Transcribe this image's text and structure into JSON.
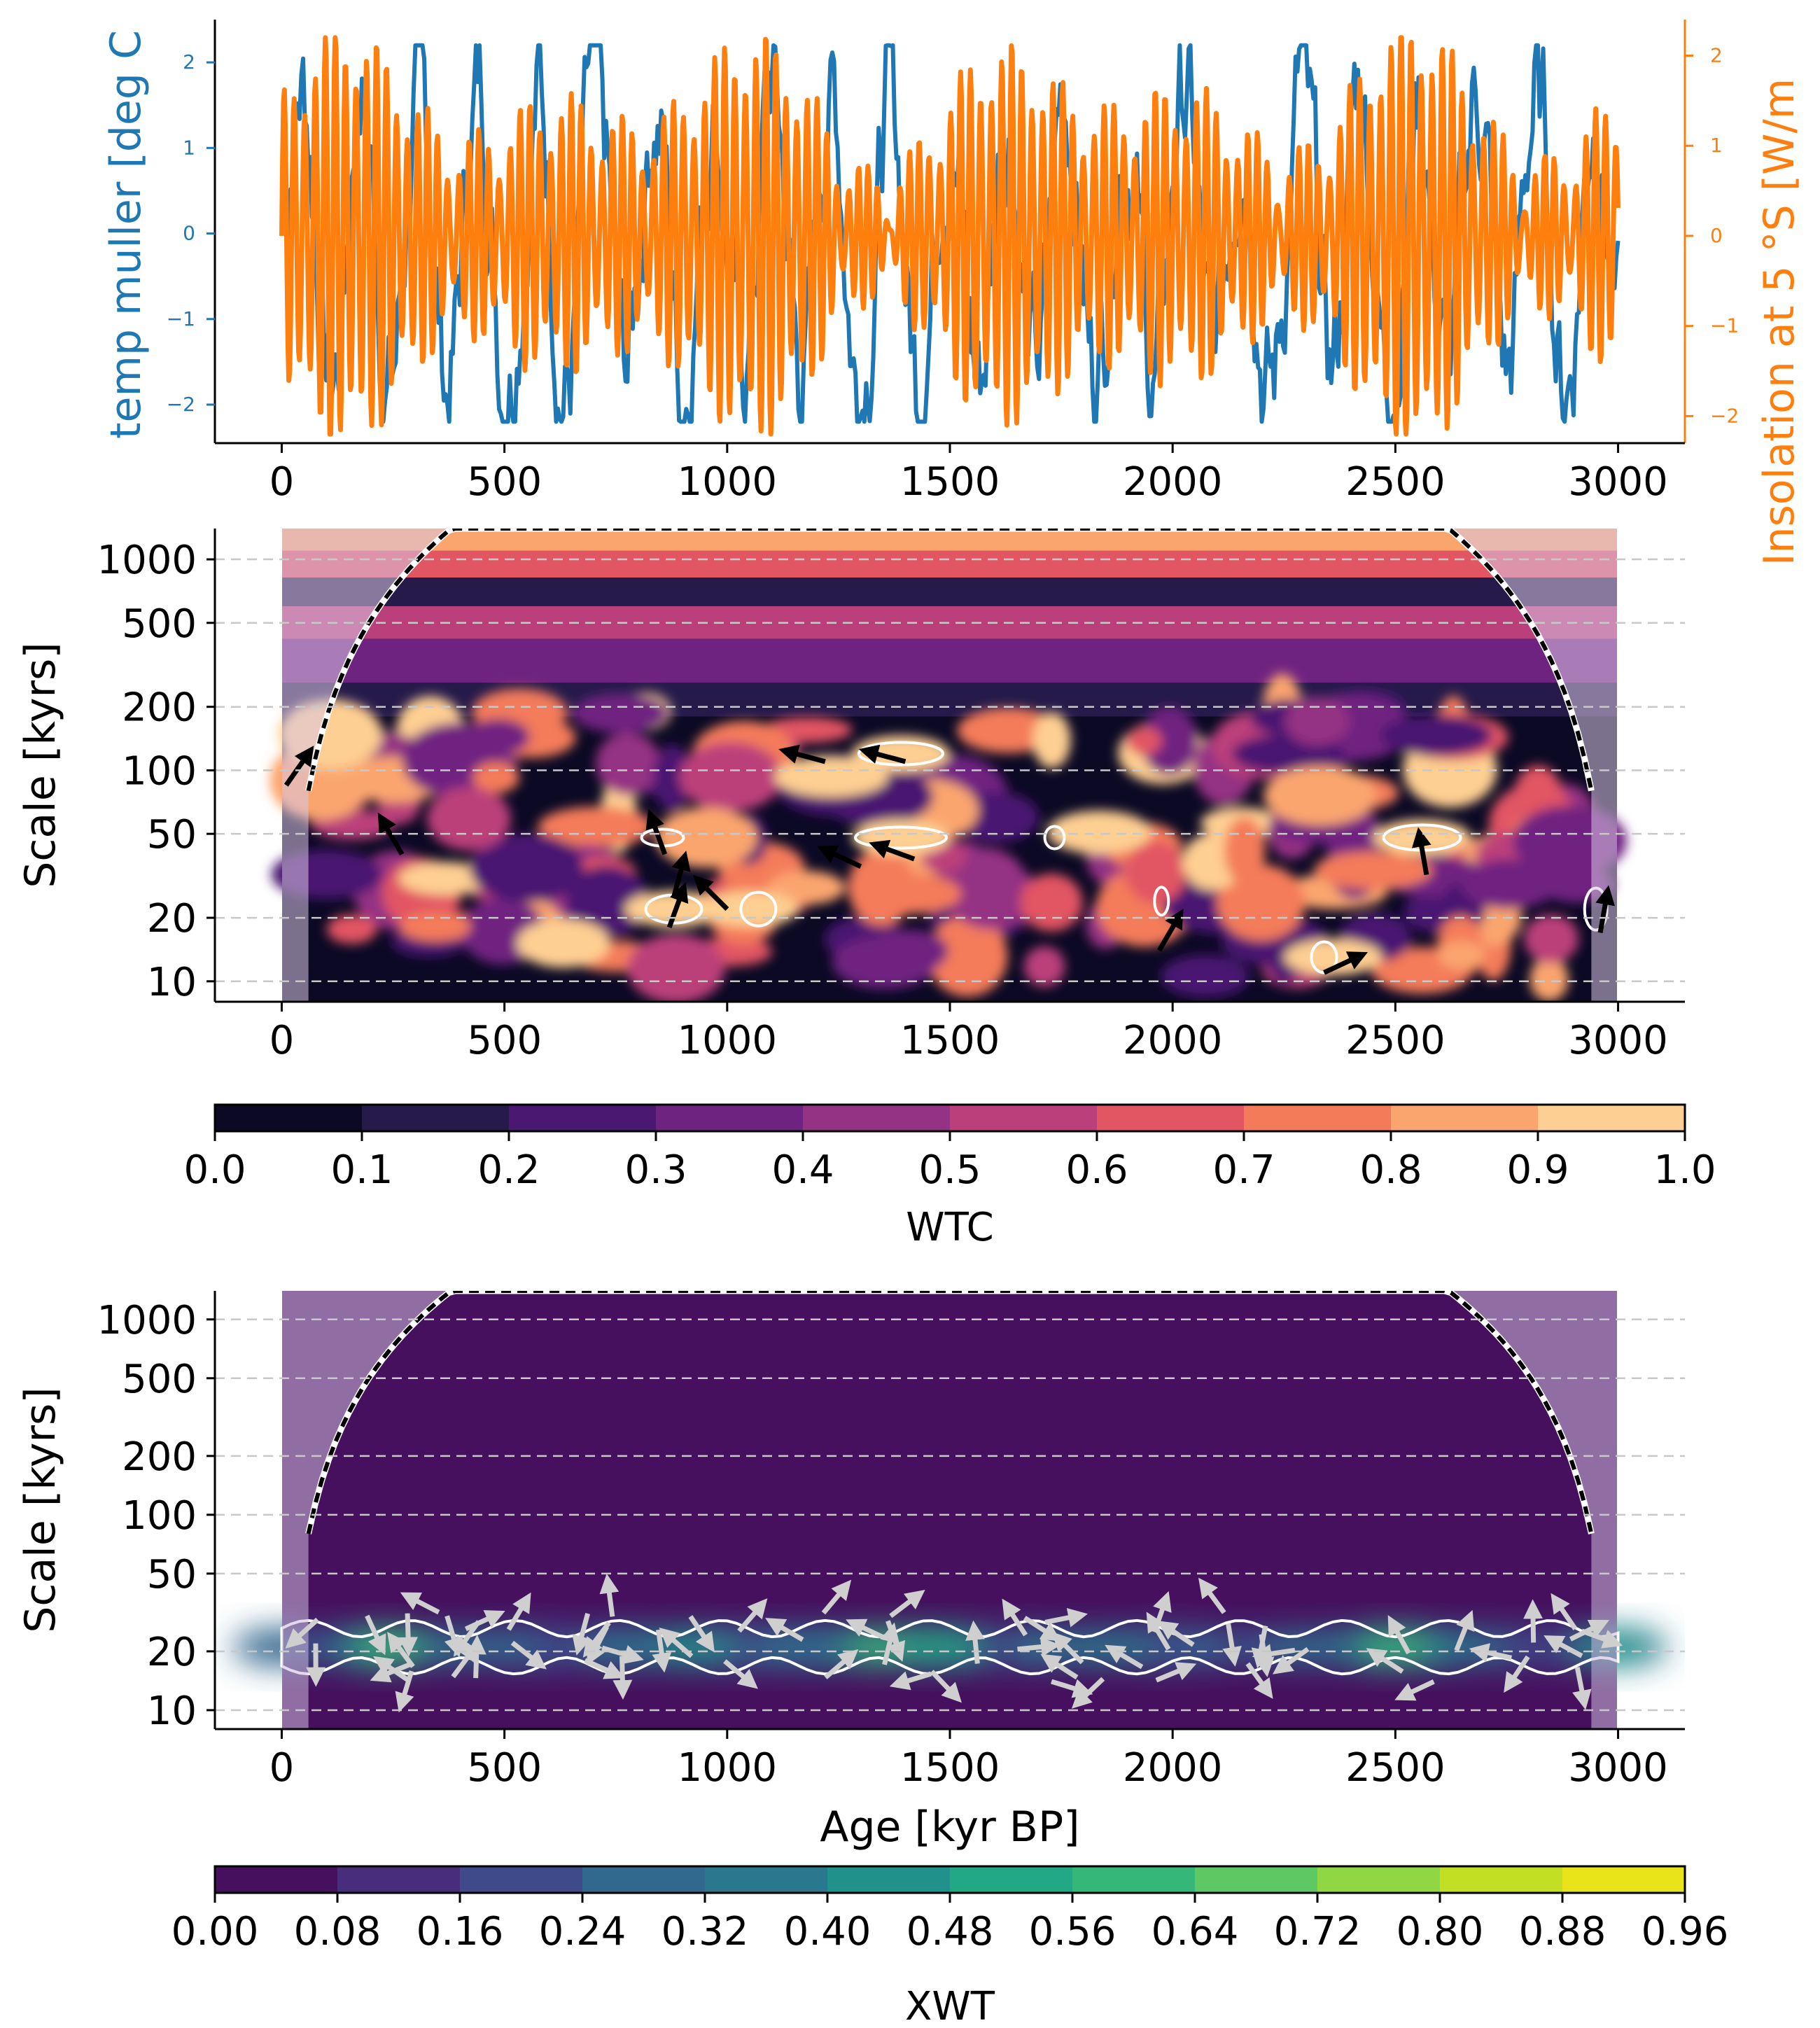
{
  "chart_data": [
    {
      "panel": "top",
      "type": "line",
      "ylabel_left": "temp muller [deg C",
      "ylabel_right": "Insolation at 5 °S [W/m",
      "xlim": [
        -150,
        3150
      ],
      "x_ticks": [
        "0",
        "500",
        "1000",
        "1500",
        "2000",
        "2500",
        "3000"
      ],
      "ylim_left": [
        -2.45,
        2.5
      ],
      "y_ticks_left": [
        "−2",
        "−1",
        "0",
        "1",
        "2"
      ],
      "ylim_right": [
        -2.3,
        2.4
      ],
      "y_ticks_right": [
        "−2",
        "−1",
        "0",
        "1",
        "2"
      ],
      "series": [
        {
          "axis": "left",
          "color": "#1f77b4"
        },
        {
          "axis": "right",
          "color": "#ff7f0e"
        }
      ]
    },
    {
      "panel": "middle",
      "type": "heatmap",
      "ylabel": "Scale [kyrs]",
      "yscale": "log",
      "ylim": [
        8,
        1400
      ],
      "y_ticks": [
        "10",
        "20",
        "50",
        "100",
        "200",
        "500",
        "1000"
      ],
      "xlim": [
        -150,
        3150
      ],
      "x_ticks": [
        "0",
        "500",
        "1000",
        "1500",
        "2000",
        "2500",
        "3000"
      ],
      "grid": "dashed horizontal",
      "colorbar": {
        "label": "WTC",
        "ticks": [
          "0.0",
          "0.1",
          "0.2",
          "0.3",
          "0.4",
          "0.5",
          "0.6",
          "0.7",
          "0.8",
          "0.9",
          "1.0"
        ],
        "colors": [
          "#0b0924",
          "#251a4a",
          "#4a1871",
          "#6f2380",
          "#943283",
          "#bb3f7a",
          "#e25563",
          "#f47b5a",
          "#fba56e",
          "#fecf92"
        ]
      }
    },
    {
      "panel": "bottom",
      "type": "heatmap",
      "ylabel": "Scale [kyrs]",
      "xlabel": "Age [kyr BP]",
      "yscale": "log",
      "ylim": [
        8,
        1400
      ],
      "y_ticks": [
        "10",
        "20",
        "50",
        "100",
        "200",
        "500",
        "1000"
      ],
      "xlim": [
        -150,
        3150
      ],
      "x_ticks": [
        "0",
        "500",
        "1000",
        "1500",
        "2000",
        "2500",
        "3000"
      ],
      "grid": "dashed horizontal",
      "colorbar": {
        "label": "XWT",
        "ticks": [
          "0.00",
          "0.08",
          "0.16",
          "0.24",
          "0.32",
          "0.40",
          "0.48",
          "0.56",
          "0.64",
          "0.72",
          "0.80",
          "0.88",
          "0.96"
        ],
        "colors": [
          "#46105e",
          "#472d7b",
          "#3e4a89",
          "#31688e",
          "#2a788e",
          "#21918c",
          "#22a884",
          "#35b779",
          "#5ec962",
          "#90d743",
          "#c2df23",
          "#e8e419"
        ]
      }
    }
  ]
}
